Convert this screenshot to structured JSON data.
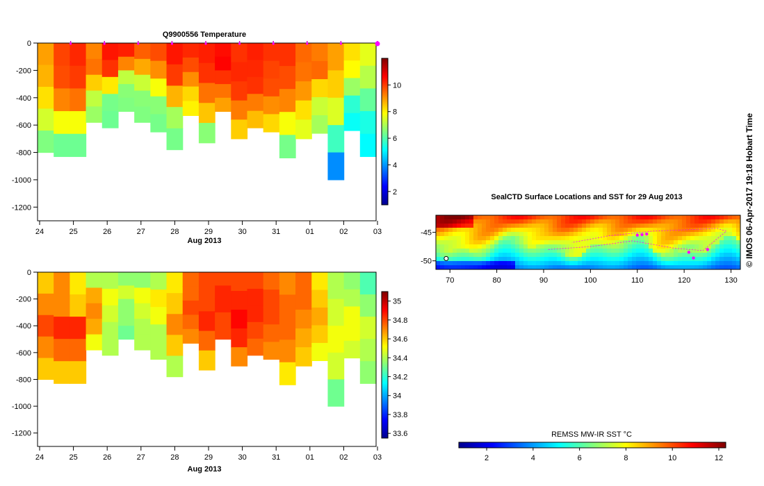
{
  "credit": "© IMOS 06-Apr-2017 19:18 Hobart Time",
  "chart_data": [
    {
      "type": "heatmap",
      "title": "Q9900556  Temperature",
      "xlabel": "Aug 2013",
      "ylabel": "",
      "xticks": [
        "24",
        "25",
        "26",
        "27",
        "28",
        "29",
        "30",
        "31",
        "01",
        "02",
        "03"
      ],
      "yticks": [
        0,
        -200,
        -400,
        -600,
        -800,
        -1000,
        -1200
      ],
      "ylim": [
        -1300,
        0
      ],
      "colorbar": {
        "min": 1,
        "max": 12,
        "ticks": [
          2,
          4,
          6,
          8,
          10
        ]
      },
      "profile_markers": [
        "25",
        "26",
        "27",
        "28",
        "29",
        "30",
        "31",
        "01",
        "02",
        "03"
      ],
      "profiles": [
        {
          "day": "24",
          "max_depth": -800,
          "values": [
            8.9,
            8.7,
            8.2,
            7.4,
            6.5
          ]
        },
        {
          "day": "24.5",
          "max_depth": -830,
          "values": [
            9.9,
            9.8,
            9.2,
            7.8,
            6.3
          ]
        },
        {
          "day": "25",
          "max_depth": -830,
          "values": [
            10.2,
            10,
            9.4,
            7.8,
            6.3
          ]
        },
        {
          "day": "25.5",
          "max_depth": -580,
          "values": [
            9.2,
            9.4,
            8.4,
            7.2,
            6.8
          ]
        },
        {
          "day": "26",
          "max_depth": -620,
          "values": [
            10.4,
            10.1,
            8.1,
            6.4,
            6.3
          ]
        },
        {
          "day": "26.5",
          "max_depth": -500,
          "values": [
            10.3,
            9.2,
            7.2,
            6.6,
            6.5
          ]
        },
        {
          "day": "27",
          "max_depth": -580,
          "values": [
            9.6,
            8.8,
            7.3,
            6.6,
            6.5
          ]
        },
        {
          "day": "27.5",
          "max_depth": -650,
          "values": [
            9.8,
            9.1,
            7.8,
            6.6,
            6.4
          ]
        },
        {
          "day": "28",
          "max_depth": -780,
          "values": [
            10.4,
            10,
            8.7,
            6.9,
            6.4
          ]
        },
        {
          "day": "28.5",
          "max_depth": -530,
          "values": [
            10.2,
            9.8,
            9.1,
            8.3,
            8
          ]
        },
        {
          "day": "29",
          "max_depth": -730,
          "values": [
            10.3,
            10.1,
            9.4,
            8.5,
            6.6
          ]
        },
        {
          "day": "29.5",
          "max_depth": -500,
          "values": [
            10.5,
            10.6,
            10.1,
            9.4,
            8.9
          ]
        },
        {
          "day": "30",
          "max_depth": -700,
          "values": [
            10.1,
            10.2,
            10,
            9.3,
            8.4
          ]
        },
        {
          "day": "30.5",
          "max_depth": -620,
          "values": [
            10.3,
            10.2,
            10.1,
            9.3,
            8.6
          ]
        },
        {
          "day": "31",
          "max_depth": -650,
          "values": [
            10.1,
            9.9,
            9.8,
            9.1,
            8.3
          ]
        },
        {
          "day": "31.5",
          "max_depth": -840,
          "values": [
            10.1,
            9.8,
            9.2,
            7.8,
            6.4
          ]
        },
        {
          "day": "01",
          "max_depth": -700,
          "values": [
            9.5,
            9.4,
            9,
            8.2,
            7.6
          ]
        },
        {
          "day": "01.5",
          "max_depth": -660,
          "values": [
            9.3,
            9.5,
            8.3,
            7.3,
            6.9
          ]
        },
        {
          "day": "02",
          "max_depth": -1000,
          "values": [
            8.9,
            8.4,
            7.5,
            5.8,
            3.9
          ]
        },
        {
          "day": "02.5",
          "max_depth": -640,
          "values": [
            8.2,
            7.9,
            6.8,
            5.6,
            5.2
          ]
        },
        {
          "day": "03",
          "max_depth": -830,
          "values": [
            7.6,
            7.1,
            6.2,
            5.4,
            5.1
          ]
        }
      ]
    },
    {
      "type": "heatmap",
      "title": "",
      "xlabel": "Aug 2013",
      "ylabel": "",
      "xticks": [
        "24",
        "25",
        "26",
        "27",
        "28",
        "29",
        "30",
        "31",
        "01",
        "02",
        "03"
      ],
      "yticks": [
        0,
        -200,
        -400,
        -600,
        -800,
        -1000,
        -1200
      ],
      "ylim": [
        -1300,
        0
      ],
      "colorbar": {
        "min": 33.55,
        "max": 35.1,
        "ticks": [
          "33.6",
          "33.8",
          "34",
          "34.2",
          "34.4",
          "34.6",
          "34.8",
          "35"
        ]
      },
      "profiles": [
        {
          "day": "24",
          "max_depth": -800,
          "values": [
            34.6,
            34.7,
            34.8,
            34.7,
            34.6
          ]
        },
        {
          "day": "24.5",
          "max_depth": -830,
          "values": [
            34.7,
            34.7,
            34.85,
            34.75,
            34.6
          ]
        },
        {
          "day": "25",
          "max_depth": -830,
          "values": [
            34.55,
            34.6,
            34.85,
            34.75,
            34.6
          ]
        },
        {
          "day": "25.5",
          "max_depth": -580,
          "values": [
            34.4,
            34.65,
            34.7,
            34.65,
            34.5
          ]
        },
        {
          "day": "26",
          "max_depth": -620,
          "values": [
            34.4,
            34.5,
            34.45,
            34.4,
            34.4
          ]
        },
        {
          "day": "26.5",
          "max_depth": -500,
          "values": [
            34.35,
            34.45,
            34.35,
            34.35,
            34.3
          ]
        },
        {
          "day": "27",
          "max_depth": -580,
          "values": [
            34.35,
            34.5,
            34.45,
            34.4,
            34.4
          ]
        },
        {
          "day": "27.5",
          "max_depth": -650,
          "values": [
            34.4,
            34.55,
            34.5,
            34.4,
            34.4
          ]
        },
        {
          "day": "28",
          "max_depth": -780,
          "values": [
            34.55,
            34.6,
            34.7,
            34.6,
            34.4
          ]
        },
        {
          "day": "28.5",
          "max_depth": -530,
          "values": [
            34.75,
            34.75,
            34.8,
            34.75,
            34.7
          ]
        },
        {
          "day": "29",
          "max_depth": -730,
          "values": [
            34.8,
            34.8,
            34.85,
            34.75,
            34.6
          ]
        },
        {
          "day": "29.5",
          "max_depth": -500,
          "values": [
            34.8,
            34.85,
            34.85,
            34.8,
            34.8
          ]
        },
        {
          "day": "30",
          "max_depth": -700,
          "values": [
            34.8,
            34.85,
            34.9,
            34.85,
            34.7
          ]
        },
        {
          "day": "30.5",
          "max_depth": -620,
          "values": [
            34.8,
            34.85,
            34.85,
            34.8,
            34.75
          ]
        },
        {
          "day": "31",
          "max_depth": -650,
          "values": [
            34.75,
            34.8,
            34.8,
            34.75,
            34.7
          ]
        },
        {
          "day": "31.5",
          "max_depth": -840,
          "values": [
            34.7,
            34.75,
            34.75,
            34.7,
            34.55
          ]
        },
        {
          "day": "01",
          "max_depth": -700,
          "values": [
            34.75,
            34.75,
            34.7,
            34.65,
            34.6
          ]
        },
        {
          "day": "01.5",
          "max_depth": -660,
          "values": [
            34.55,
            34.6,
            34.65,
            34.6,
            34.5
          ]
        },
        {
          "day": "02",
          "max_depth": -1000,
          "values": [
            34.4,
            34.45,
            34.5,
            34.45,
            34.3
          ]
        },
        {
          "day": "02.5",
          "max_depth": -640,
          "values": [
            34.35,
            34.4,
            34.5,
            34.5,
            34.45
          ]
        },
        {
          "day": "03",
          "max_depth": -830,
          "values": [
            34.25,
            34.35,
            34.45,
            34.4,
            34.35
          ]
        }
      ]
    },
    {
      "type": "heatmap",
      "title": "SealCTD Surface Locations and SST for 29 Aug 2013",
      "xlabel": "",
      "xticks": [
        "70",
        "80",
        "90",
        "100",
        "110",
        "120",
        "130"
      ],
      "xlim": [
        67,
        132
      ],
      "yticks": [
        "-45",
        "-50"
      ],
      "ylim": [
        -51.5,
        -42
      ],
      "colorbar_label": "REMSS MW-IR SST °C",
      "colorbar": {
        "min": 0.8,
        "max": 12.3,
        "ticks": [
          "2",
          "4",
          "6",
          "8",
          "10",
          "12"
        ]
      }
    }
  ]
}
